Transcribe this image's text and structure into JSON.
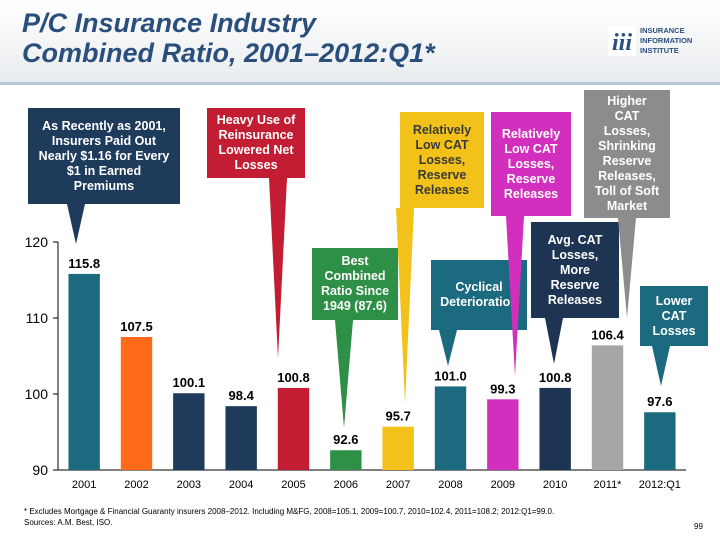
{
  "header": {
    "title_line1": "P/C Insurance Industry",
    "title_line2": "Combined Ratio, 2001–2012:Q1*",
    "logo_line1": "INSURANCE",
    "logo_line2": "INFORMATION",
    "logo_line3": "INSTITUTE",
    "logo_mark": "iii"
  },
  "callouts": {
    "c1": {
      "line1": "As Recently as 2001,",
      "line2": "Insurers Paid Out",
      "line3": "Nearly $1.16 for Every",
      "line4": "$1 in Earned",
      "line5": "Premiums"
    },
    "c2": {
      "line1": "Heavy Use of",
      "line2": "Reinsurance",
      "line3": "Lowered Net",
      "line4": "Losses"
    },
    "c3": {
      "line1": "Best",
      "line2": "Combined",
      "line3": "Ratio Since",
      "line4": "1949 (87.6)"
    },
    "c4": {
      "line1": "Relatively",
      "line2": "Low CAT",
      "line3": "Losses,",
      "line4": "Reserve",
      "line5": "Releases"
    },
    "c5": {
      "line1": "Cyclical",
      "line2": "Deterioration"
    },
    "c6": {
      "line1": "Relatively",
      "line2": "Low CAT",
      "line3": "Losses,",
      "line4": "Reserve",
      "line5": "Releases"
    },
    "c7": {
      "line1": "Avg. CAT",
      "line2": "Losses,",
      "line3": "More",
      "line4": "Reserve",
      "line5": "Releases"
    },
    "c8": {
      "line1": "Higher",
      "line2": "CAT",
      "line3": "Losses,",
      "line4": "Shrinking",
      "line5": "Reserve",
      "line6": "Releases,",
      "line7": "Toll of Soft",
      "line8": "Market"
    },
    "c9": {
      "line1": "Lower",
      "line2": "CAT",
      "line3": "Losses"
    }
  },
  "chart_data": {
    "type": "bar",
    "title": "P/C Insurance Industry Combined Ratio, 2001–2012:Q1*",
    "categories": [
      "2001",
      "2002",
      "2003",
      "2004",
      "2005",
      "2006",
      "2007",
      "2008",
      "2009",
      "2010",
      "2011*",
      "2012:Q1"
    ],
    "values": [
      115.8,
      107.5,
      100.1,
      98.4,
      100.8,
      92.6,
      95.7,
      101.0,
      99.3,
      100.8,
      106.4,
      97.6
    ],
    "value_labels": [
      "115.8",
      "107.5",
      "100.1",
      "98.4",
      "100.8",
      "92.6",
      "95.7",
      "101.0",
      "99.3",
      "100.8",
      "106.4",
      "97.6"
    ],
    "bar_colors": [
      "#1b6a80",
      "#ff6a1a",
      "#1f3b5c",
      "#1f3b5c",
      "#c21d33",
      "#2e8f46",
      "#f2c21a",
      "#1b6a80",
      "#d32fbf",
      "#1d3453",
      "#a6a6a6",
      "#1b6a80"
    ],
    "ylim": [
      90,
      120
    ],
    "yticks": [
      "90",
      "100",
      "110",
      "120"
    ],
    "xlabel": "",
    "ylabel": "",
    "grid": false,
    "legend": "none"
  },
  "footnote": {
    "line1": "* Excludes Mortgage & Financial Guaranty insurers 2008–2012. Including M&FG, 2008=105.1, 2009=100.7, 2010=102.4, 2011=108.2; 2012:Q1=99.0.",
    "line2": "Sources: A.M. Best, ISO."
  },
  "page_number": "99"
}
